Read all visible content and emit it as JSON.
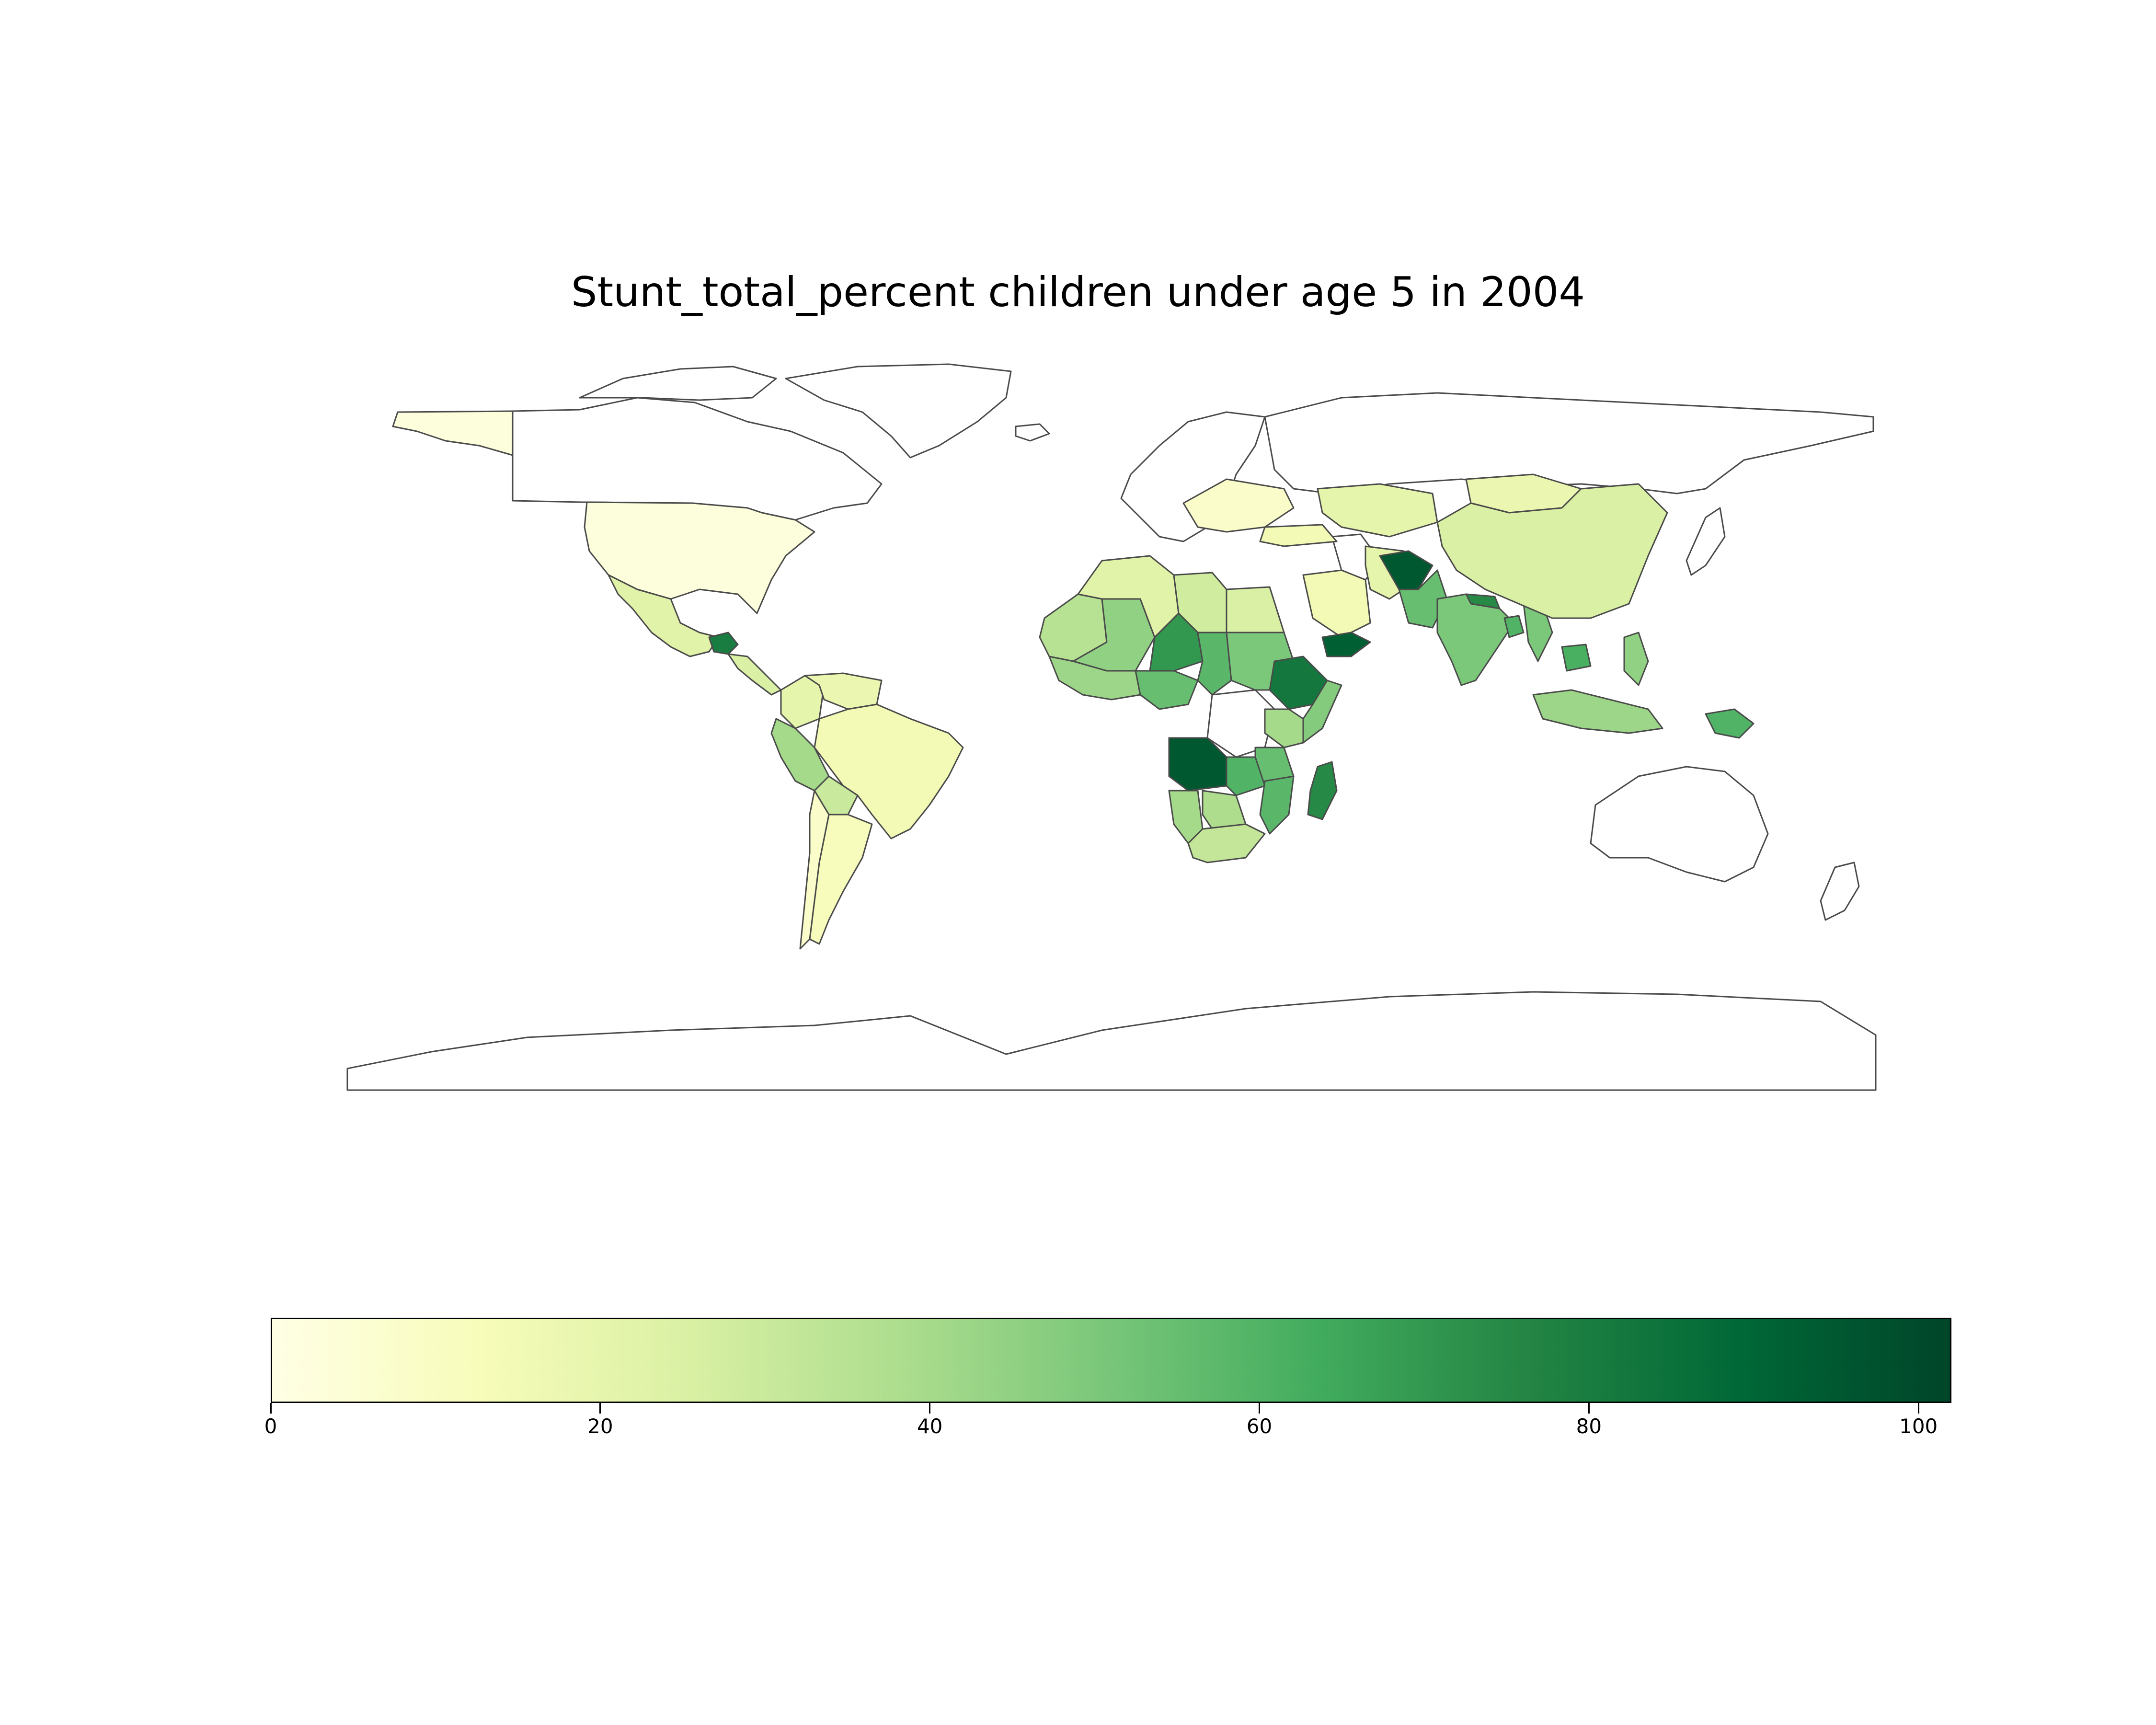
{
  "title": "Stunt_total_percent children under age 5 in 2004",
  "colormap": {
    "name": "YlGn",
    "stops": [
      "#ffffe5",
      "#f7fcb9",
      "#d9f0a3",
      "#addd8e",
      "#78c679",
      "#41ab5d",
      "#238443",
      "#006837",
      "#004529"
    ],
    "vmin": 0,
    "vmax": 102,
    "ticks": [
      "0",
      "20",
      "40",
      "60",
      "80",
      "100"
    ]
  },
  "no_data_color": "#ffffff",
  "border_color": "#4a4a4a",
  "regions": [
    {
      "name": "Alaska",
      "value": 3
    },
    {
      "name": "United States",
      "value": 3
    },
    {
      "name": "Mexico",
      "value": 22
    },
    {
      "name": "Guatemala",
      "value": 80
    },
    {
      "name": "Central America",
      "value": 25
    },
    {
      "name": "Colombia",
      "value": 20
    },
    {
      "name": "Venezuela",
      "value": 18
    },
    {
      "name": "Peru",
      "value": 40
    },
    {
      "name": "Brazil",
      "value": 15
    },
    {
      "name": "Bolivia",
      "value": 30
    },
    {
      "name": "Argentina",
      "value": 12
    },
    {
      "name": "Chile",
      "value": 8
    },
    {
      "name": "Mauritania",
      "value": 35
    },
    {
      "name": "Mali",
      "value": 45
    },
    {
      "name": "Algeria",
      "value": 22
    },
    {
      "name": "Libya",
      "value": 28
    },
    {
      "name": "Egypt",
      "value": 25
    },
    {
      "name": "Niger",
      "value": 70
    },
    {
      "name": "Chad",
      "value": 58
    },
    {
      "name": "Sudan",
      "value": 50
    },
    {
      "name": "Nigeria",
      "value": 55
    },
    {
      "name": "West Africa coast",
      "value": 42
    },
    {
      "name": "Ethiopia",
      "value": 82
    },
    {
      "name": "Somalia",
      "value": 48
    },
    {
      "name": "Kenya",
      "value": 40
    },
    {
      "name": "Tanzania",
      "value": 55
    },
    {
      "name": "Angola",
      "value": 95
    },
    {
      "name": "Zambia",
      "value": 60
    },
    {
      "name": "Mozambique",
      "value": 58
    },
    {
      "name": "Madagascar",
      "value": 75
    },
    {
      "name": "Namibia",
      "value": 40
    },
    {
      "name": "Botswana",
      "value": 38
    },
    {
      "name": "South Africa",
      "value": 32
    },
    {
      "name": "Saudi Arabia",
      "value": 15
    },
    {
      "name": "Yemen",
      "value": 92
    },
    {
      "name": "Afghanistan",
      "value": 95
    },
    {
      "name": "Pakistan",
      "value": 55
    },
    {
      "name": "India",
      "value": 50
    },
    {
      "name": "Nepal",
      "value": 75
    },
    {
      "name": "Bangladesh",
      "value": 60
    },
    {
      "name": "Myanmar",
      "value": 50
    },
    {
      "name": "Cambodia",
      "value": 62
    },
    {
      "name": "Philippines",
      "value": 45
    },
    {
      "name": "Indonesia",
      "value": 42
    },
    {
      "name": "Papua New Guinea",
      "value": 60
    },
    {
      "name": "China",
      "value": 25
    },
    {
      "name": "Mongolia",
      "value": 18
    },
    {
      "name": "Kazakhstan",
      "value": 20
    },
    {
      "name": "Turkey",
      "value": 15
    },
    {
      "name": "Iran",
      "value": 20
    },
    {
      "name": "Eastern Europe",
      "value": 8
    }
  ]
}
